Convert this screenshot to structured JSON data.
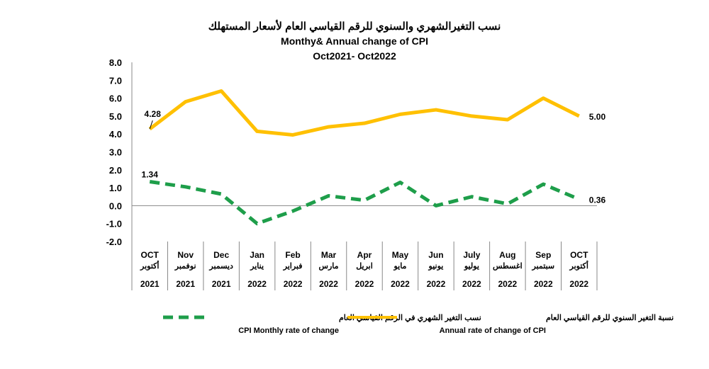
{
  "chart_data": {
    "type": "line",
    "title_ar": "نسب التغيرالشهري والسنوي للرقم القياسي العام لأسعار المستهلك",
    "title": "Monthy& Annual change of CPI",
    "subtitle": "Oct2021- Oct2022",
    "ylim": [
      -2,
      8
    ],
    "yticks": [
      "8.0",
      "7.0",
      "6.0",
      "5.0",
      "4.0",
      "3.0",
      "2.0",
      "1.0",
      "0.0",
      "-1.0",
      "-2.0"
    ],
    "categories": [
      {
        "en": "OCT",
        "ar": "أكتوبر",
        "year": "2021"
      },
      {
        "en": "Nov",
        "ar": "نوفمبر",
        "year": "2021"
      },
      {
        "en": "Dec",
        "ar": "ديسمبر",
        "year": "2021"
      },
      {
        "en": "Jan",
        "ar": "يناير",
        "year": "2022"
      },
      {
        "en": "Feb",
        "ar": "فبراير",
        "year": "2022"
      },
      {
        "en": "Mar",
        "ar": "مارس",
        "year": "2022"
      },
      {
        "en": "Apr",
        "ar": "ابريل",
        "year": "2022"
      },
      {
        "en": "May",
        "ar": "مايو",
        "year": "2022"
      },
      {
        "en": "Jun",
        "ar": "يونيو",
        "year": "2022"
      },
      {
        "en": "July",
        "ar": "يوليو",
        "year": "2022"
      },
      {
        "en": "Aug",
        "ar": "اغسطس",
        "year": "2022"
      },
      {
        "en": "Sep",
        "ar": "سبتمبر",
        "year": "2022"
      },
      {
        "en": "OCT",
        "ar": "أكتوبر",
        "year": "2022"
      }
    ],
    "series": [
      {
        "name": "Annual rate of change of CPI",
        "name_ar": "نسبة التغير السنوي للرقم القياسي العام",
        "color": "#FFC000",
        "style": "solid",
        "values": [
          4.28,
          5.8,
          6.4,
          4.15,
          3.95,
          4.4,
          4.6,
          5.1,
          5.35,
          5.0,
          4.8,
          6.0,
          5.0
        ],
        "labels": {
          "first": "4.28",
          "last": "5.00"
        }
      },
      {
        "name": "CPI Monthly rate of change",
        "name_ar": "نسب التغير الشهري في الرقم القياسي العام",
        "color": "#1E9E4A",
        "style": "dashed",
        "values": [
          1.34,
          1.05,
          0.65,
          -1.0,
          -0.3,
          0.55,
          0.3,
          1.3,
          0.0,
          0.5,
          0.1,
          1.2,
          0.36
        ],
        "labels": {
          "first": "1.34",
          "last": "0.36"
        }
      }
    ],
    "grid": false,
    "legend": "bottom"
  }
}
